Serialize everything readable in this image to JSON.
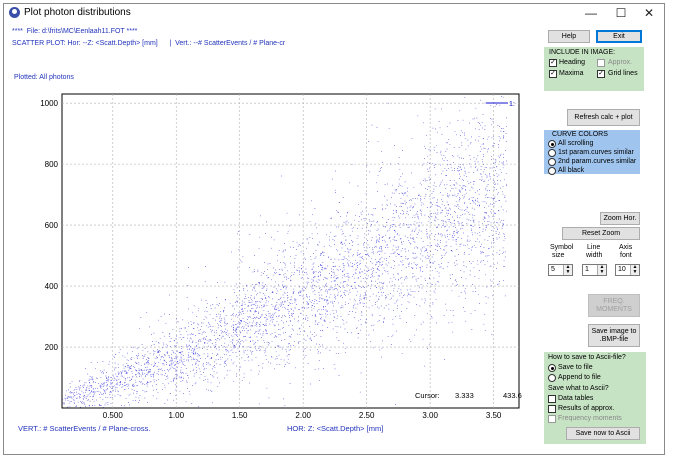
{
  "window": {
    "title": "Plot photon distributions",
    "minimize": "—",
    "maximize": "☐",
    "close": "✕"
  },
  "info": {
    "file_line": "****  File: d:\\frits\\MC\\Eenlaah11.FOT ****",
    "scatter_line": "SCATTER PLOT: Hor: --Z: <Scatt.Depth> [mm]      |  Vert.: --# ScatterEvents / # Plane-cr",
    "plotted_line": "Plotted: All photons"
  },
  "plot": {
    "cursor_label": "Cursor:",
    "cursor_x": "3.333",
    "cursor_y": "433.6",
    "vert_label": "VERT.: # ScatterEvents / # Plane-cross.",
    "hor_label": "HOR: Z: <Scatt.Depth> [mm]",
    "legend_label": "1:"
  },
  "chart_data": {
    "type": "scatter",
    "title": "",
    "xlabel": "HOR: Z: <Scatt.Depth> [mm]",
    "ylabel": "VERT.: # ScatterEvents / # Plane-cross.",
    "xlim": [
      0.1,
      3.7
    ],
    "ylim": [
      0,
      1030
    ],
    "x_ticks": [
      "0.500",
      "1.00",
      "1.50",
      "2.00",
      "2.50",
      "3.00",
      "3.50"
    ],
    "x_tick_values": [
      0.5,
      1.0,
      1.5,
      2.0,
      2.5,
      3.0,
      3.5
    ],
    "y_ticks": [
      "200",
      "400",
      "600",
      "800",
      "1000"
    ],
    "y_tick_values": [
      200,
      400,
      600,
      800,
      1000
    ],
    "grid": true,
    "legend": "top-right",
    "color": "#1010d0",
    "series": [
      {
        "name": "1:",
        "description_points": "dense cloud; y grows roughly as exp-like with x, spread widening with depth"
      }
    ]
  },
  "panel": {
    "help": "Help",
    "exit": "Exit",
    "include_title": "INCLUDE IN IMAGE:",
    "heading": "Heading",
    "approx": "Approx.",
    "maxima": "Maxima",
    "grid_lines": "Grid lines",
    "refresh": "Refresh calc + plot",
    "curve_colors_title": "CURVE COLORS",
    "all_scrolling": "All scrolling",
    "first_param": "1st param.curves similar",
    "second_param": "2nd param.curves similar",
    "all_black": "All black",
    "zoom_hor": "Zoom Hor.",
    "reset_zoom": "Reset Zoom",
    "symbol_size_label_1": "Symbol",
    "symbol_size_label_2": "size",
    "line_width_label_1": "Line",
    "line_width_label_2": "width",
    "axis_font_label_1": "Axis",
    "axis_font_label_2": "font",
    "symbol_size": "5",
    "line_width": "1",
    "axis_font": "10",
    "freq_moments_1": "FREQ.",
    "freq_moments_2": "MOMENTS",
    "save_image_1": "Save image to",
    "save_image_2": ".BMP-file",
    "how_to_save": "How to save to Ascii-file?",
    "save_to_file": "Save to file",
    "append_to_file": "Append to file",
    "save_what": "Save what to Ascii?",
    "data_tables": "Data tables",
    "results_approx": "Results of approx.",
    "frequency_moments": "Frequency moments",
    "save_now": "Save now to Ascii"
  }
}
